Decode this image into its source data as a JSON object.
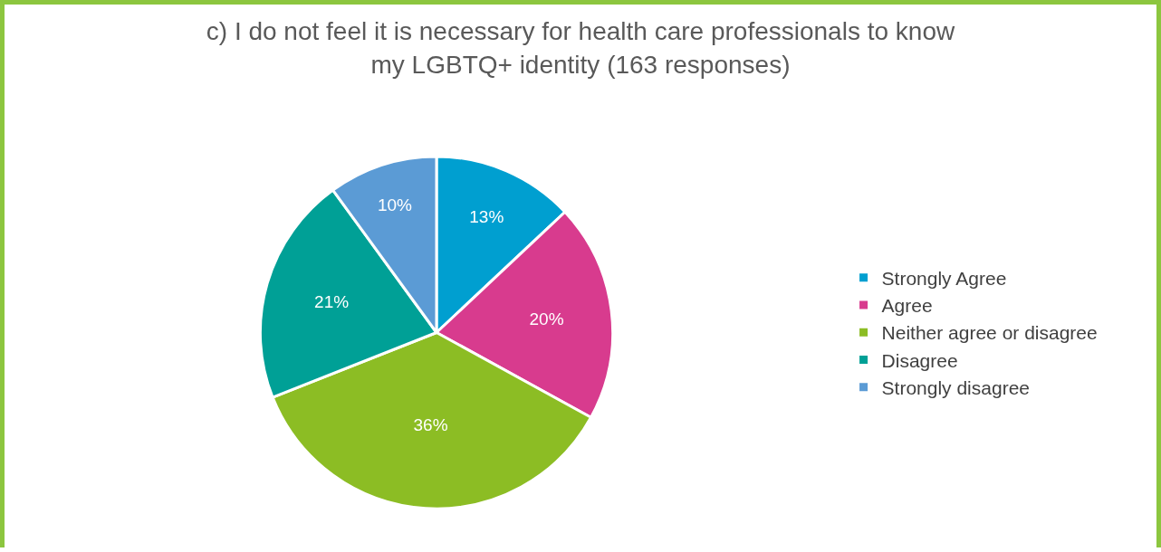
{
  "chart_data": {
    "type": "pie",
    "title": "c) I do not feel it is necessary for health care professionals to know\nmy LGBTQ+ identity (163 responses)",
    "categories": [
      "Strongly Agree",
      "Agree",
      "Neither agree or disagree",
      "Disagree",
      "Strongly disagree"
    ],
    "values": [
      13,
      20,
      36,
      21,
      10
    ],
    "value_labels": [
      "13%",
      "20%",
      "36%",
      "21%",
      "10%"
    ],
    "colors": [
      "#009fd0",
      "#d83b8e",
      "#8cbd24",
      "#00a096",
      "#5b9bd5"
    ],
    "legend": "right"
  }
}
